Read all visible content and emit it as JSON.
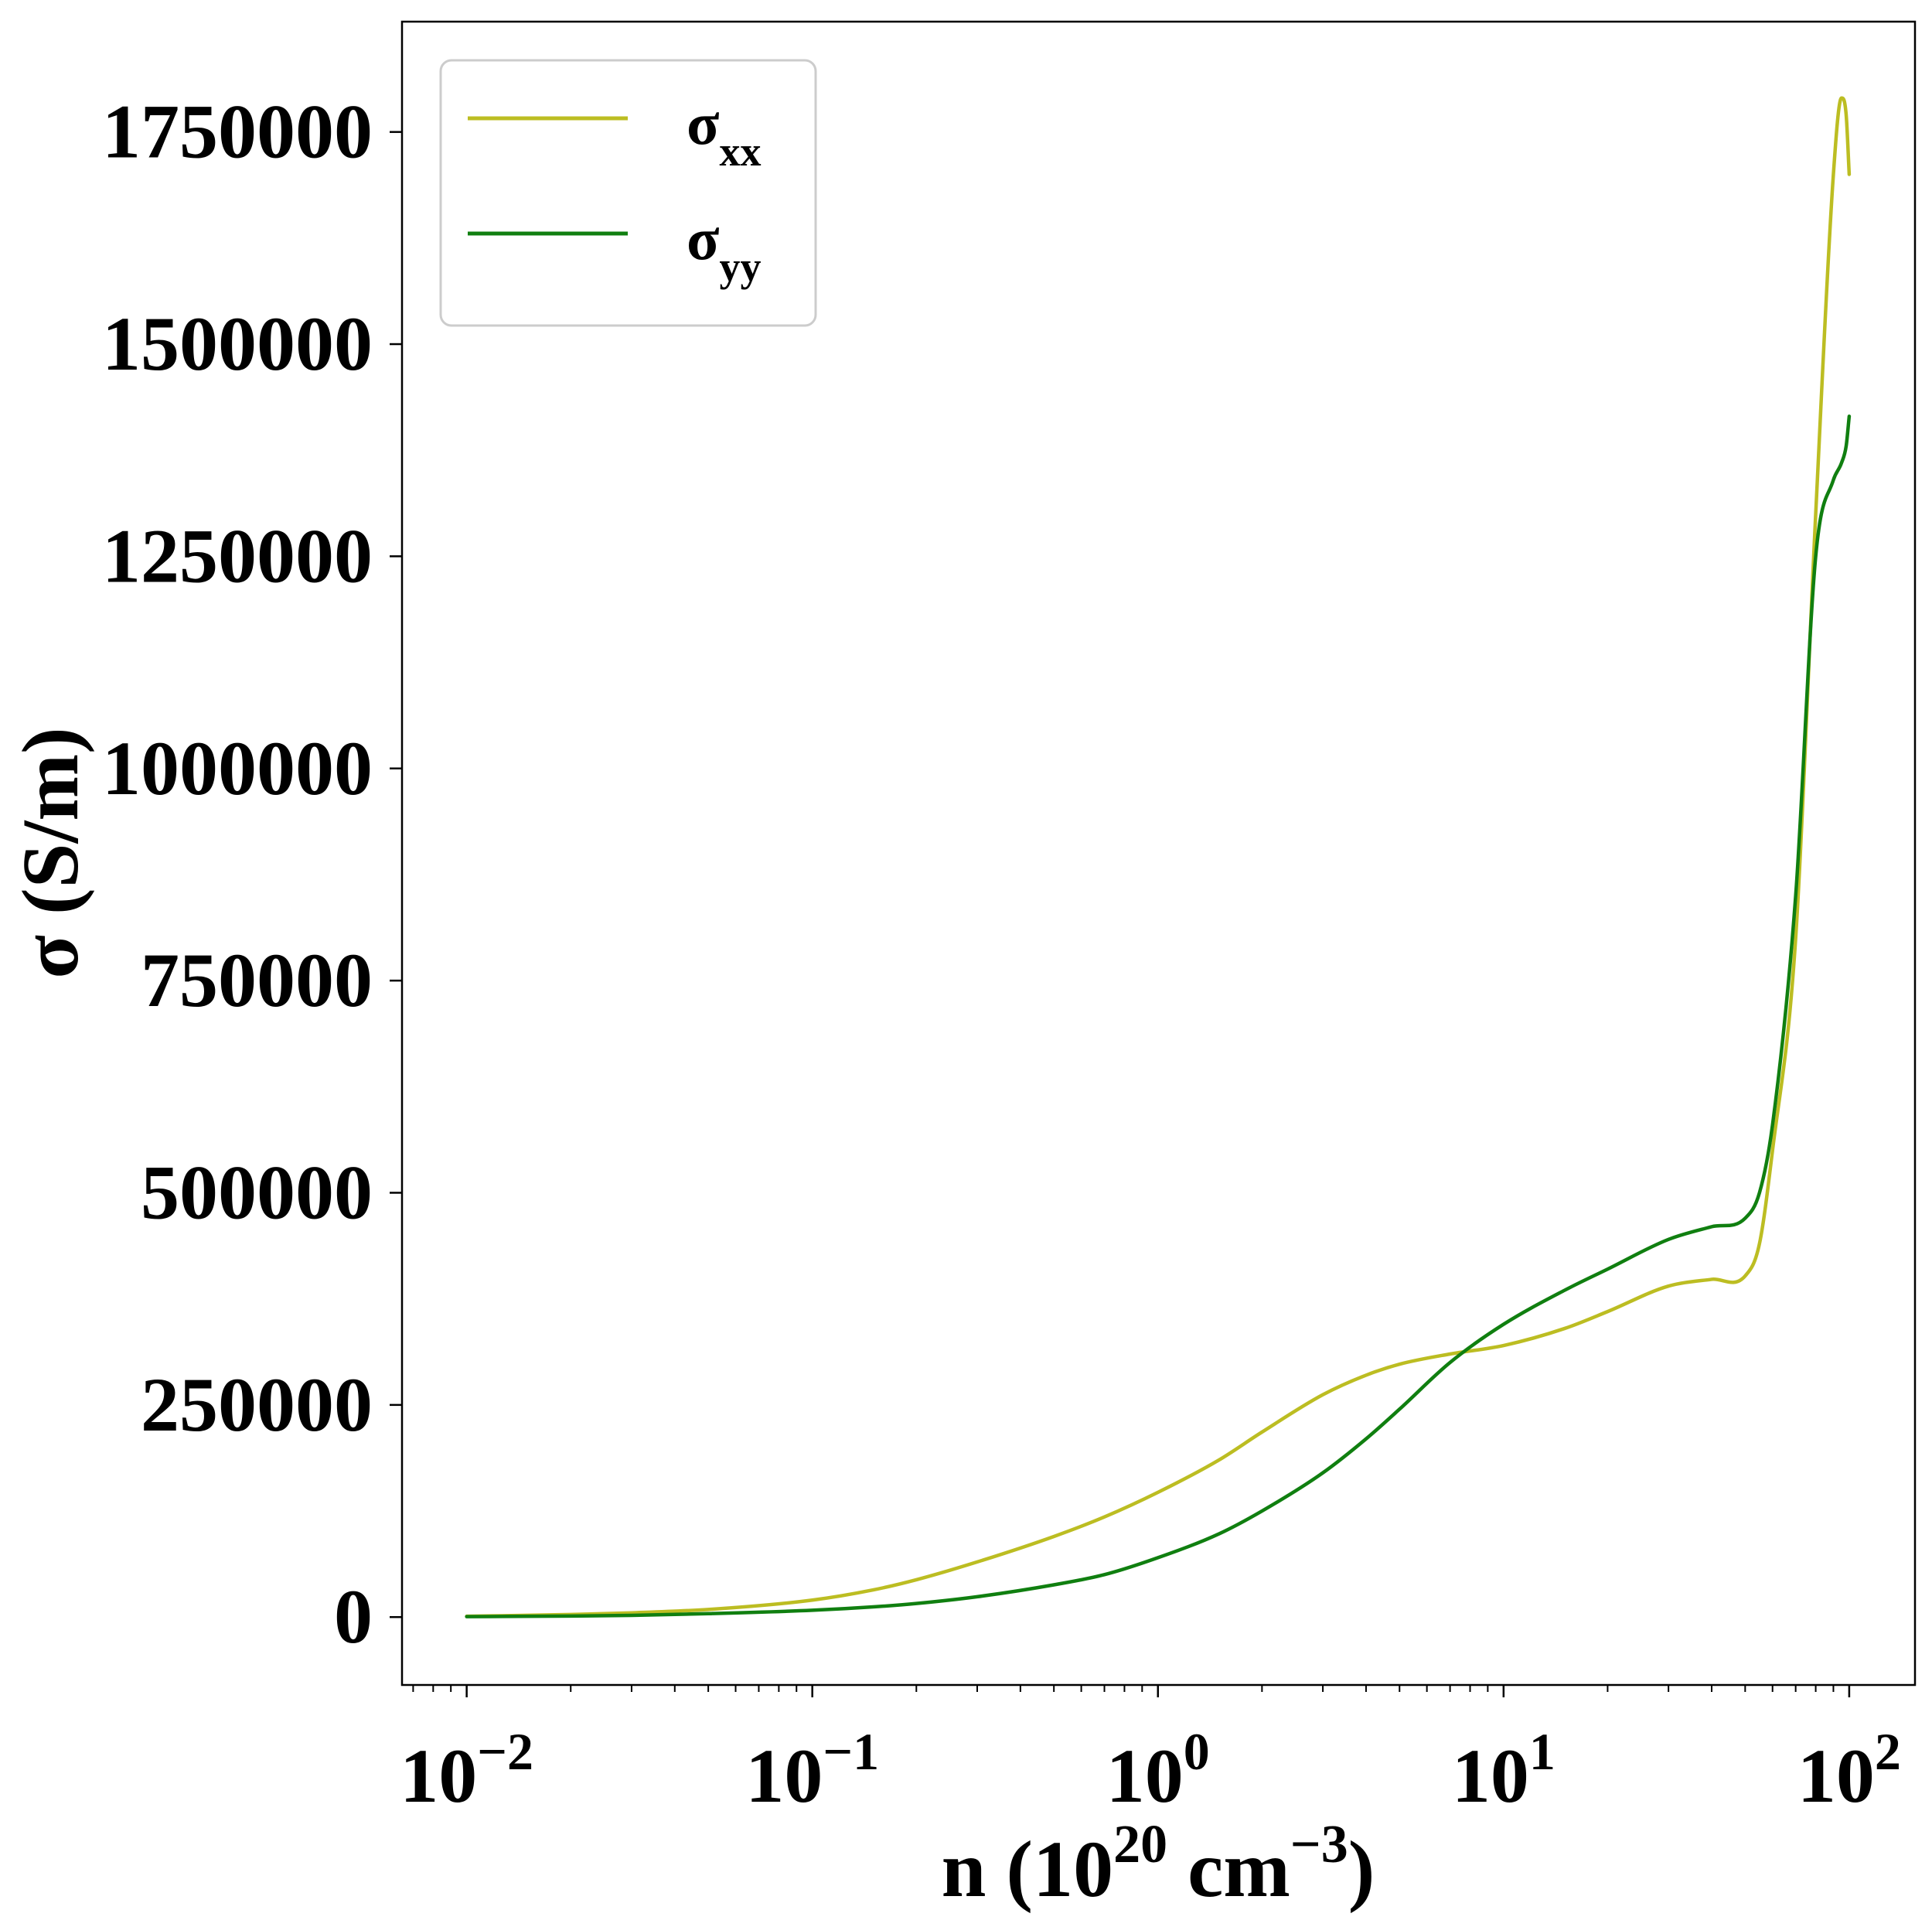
{
  "chart_data": {
    "type": "line",
    "xlabel": {
      "base": "n (10",
      "sup1": "20",
      "mid": " cm",
      "sup2": "−3",
      "end": ")"
    },
    "ylabel": "σ (S/m)",
    "x_scale": "log",
    "xlim": [
      0.0065,
      155
    ],
    "ylim": [
      -80000,
      1880000
    ],
    "grid": false,
    "legend_placement": "top-left",
    "x_ticks": [
      {
        "value": 0.01,
        "base": "10",
        "exp": "−2"
      },
      {
        "value": 0.1,
        "base": "10",
        "exp": "−1"
      },
      {
        "value": 1,
        "base": "10",
        "exp": "0"
      },
      {
        "value": 10,
        "base": "10",
        "exp": "1"
      },
      {
        "value": 100,
        "base": "10",
        "exp": "2"
      }
    ],
    "y_ticks": [
      {
        "value": 0,
        "label": "0"
      },
      {
        "value": 250000,
        "label": "250000"
      },
      {
        "value": 500000,
        "label": "500000"
      },
      {
        "value": 750000,
        "label": "750000"
      },
      {
        "value": 1000000,
        "label": "1000000"
      },
      {
        "value": 1250000,
        "label": "1250000"
      },
      {
        "value": 1500000,
        "label": "1500000"
      },
      {
        "value": 1750000,
        "label": "1750000"
      }
    ],
    "series": [
      {
        "name": "σxx",
        "legend_base": "σ",
        "legend_sub": "xx",
        "color": "#bcbd22",
        "x": [
          0.01,
          0.02,
          0.03,
          0.05,
          0.1,
          0.15,
          0.2,
          0.3,
          0.5,
          0.7,
          1,
          1.5,
          2,
          3,
          4,
          5,
          7,
          10,
          15,
          20,
          30,
          40,
          50,
          55,
          60,
          70,
          80,
          90,
          95,
          98,
          100
        ],
        "y": [
          1000,
          3000,
          5000,
          9000,
          20000,
          32000,
          44000,
          65000,
          95000,
          118000,
          147000,
          185000,
          218000,
          262000,
          285000,
          298000,
          310000,
          320000,
          340000,
          360000,
          390000,
          398000,
          402000,
          440000,
          550000,
          800000,
          1300000,
          1700000,
          1790000,
          1770000,
          1700000
        ]
      },
      {
        "name": "σyy",
        "legend_base": "σ",
        "legend_sub": "yy",
        "color": "#107f10",
        "x": [
          0.01,
          0.02,
          0.03,
          0.05,
          0.1,
          0.15,
          0.2,
          0.3,
          0.5,
          0.7,
          1,
          1.5,
          2,
          3,
          4,
          5,
          7,
          10,
          15,
          20,
          30,
          40,
          50,
          55,
          60,
          70,
          80,
          90,
          95,
          98,
          100
        ],
        "y": [
          500,
          1200,
          2000,
          4000,
          8000,
          12000,
          16000,
          24000,
          38000,
          50000,
          70000,
          98000,
          125000,
          170000,
          210000,
          245000,
          300000,
          345000,
          385000,
          410000,
          445000,
          460000,
          470000,
          500000,
          580000,
          850000,
          1250000,
          1340000,
          1360000,
          1380000,
          1415000
        ]
      }
    ]
  }
}
